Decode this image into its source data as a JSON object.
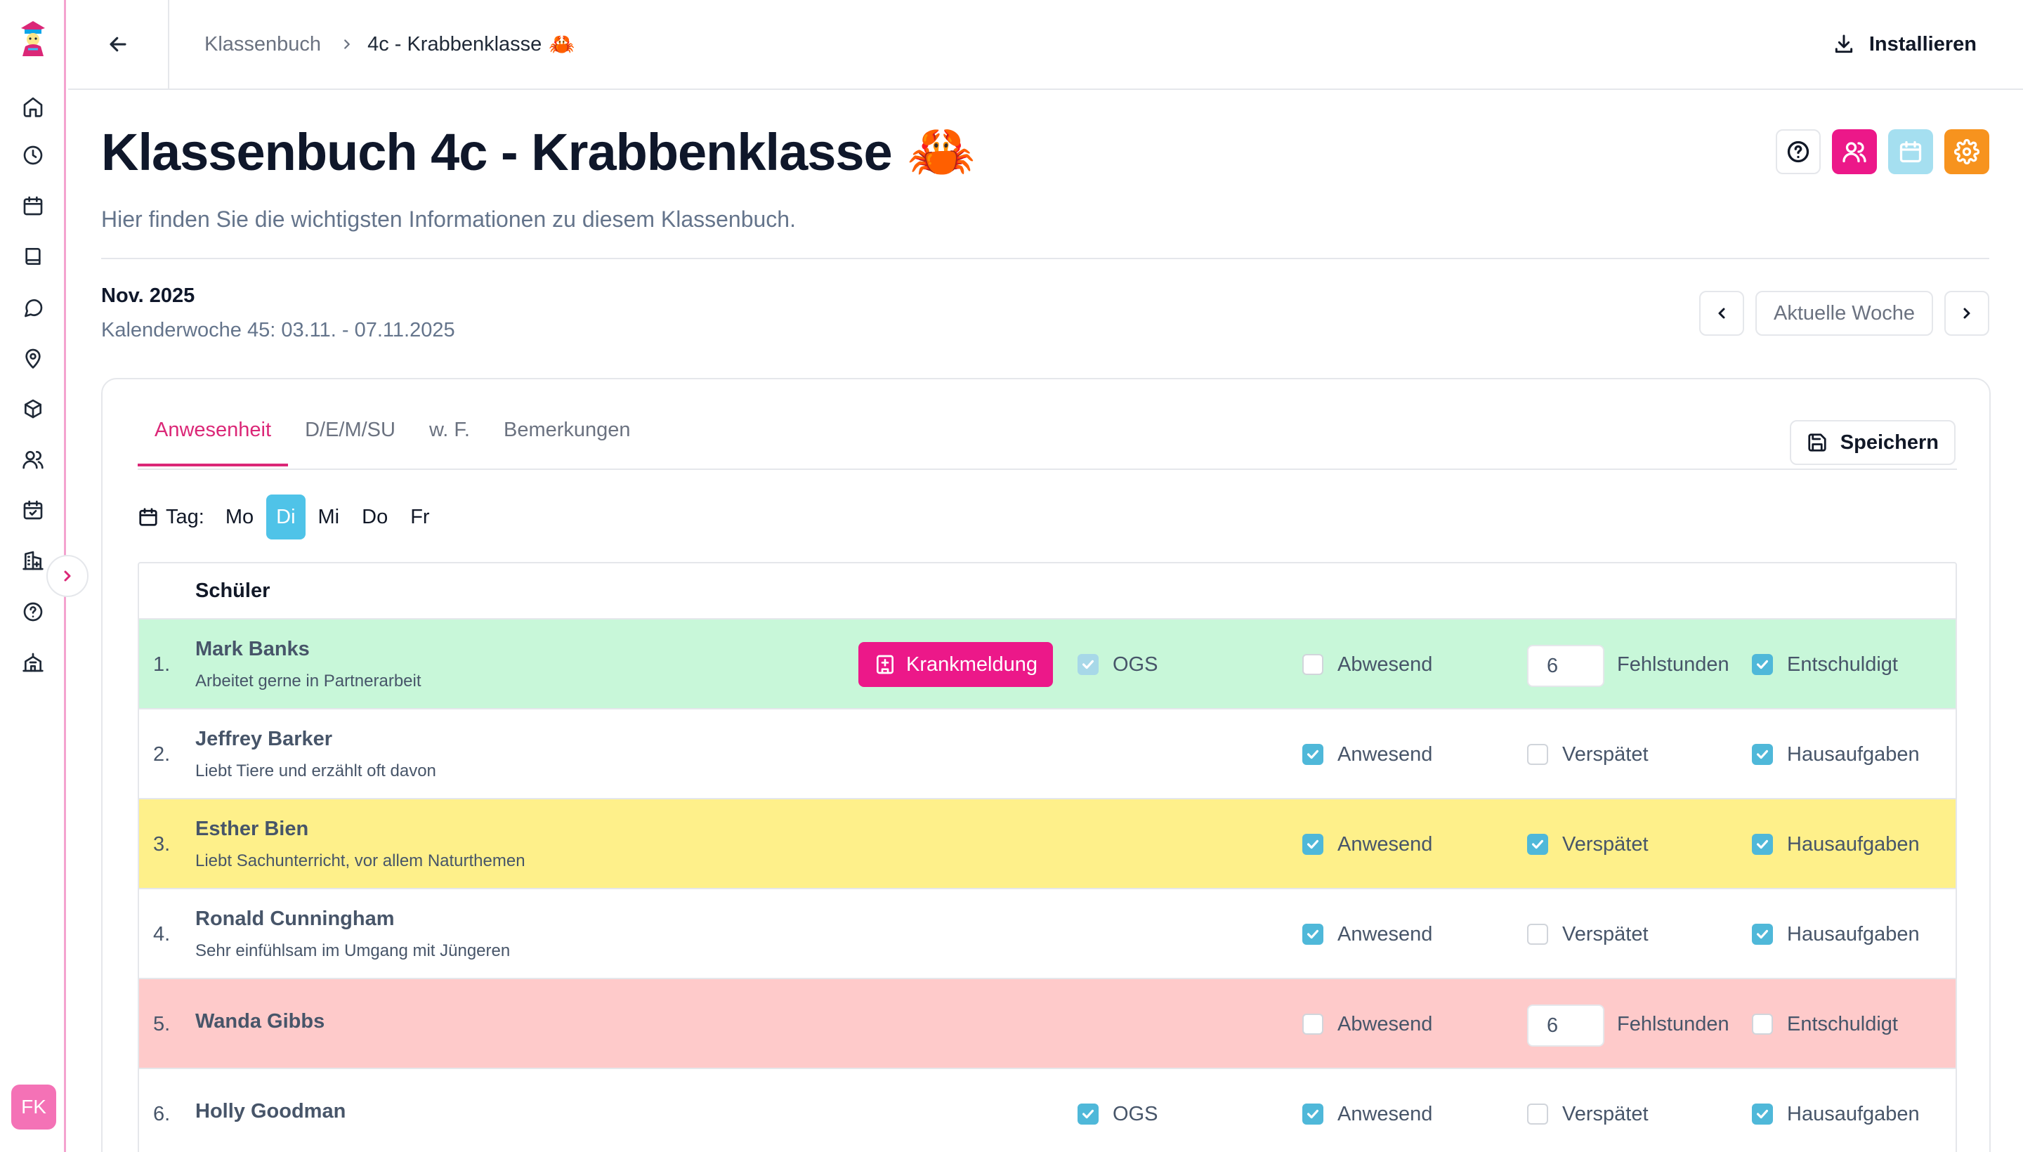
{
  "nav": {
    "breadcrumb_root": "Klassenbuch",
    "breadcrumb_current": "4c - Krabbenklasse",
    "breadcrumb_emoji": "🦀",
    "install_label": "Installieren"
  },
  "sidebar": {
    "items": [
      "home-icon",
      "clock-icon",
      "calendar-icon",
      "book-icon",
      "chat-icon",
      "map-pin-icon",
      "box-icon",
      "users-icon",
      "calendar-check-icon",
      "building-plus-icon",
      "help-icon",
      "school-icon"
    ],
    "avatar_initials": "FK"
  },
  "header": {
    "title": "Klassenbuch 4c - Krabbenklasse",
    "title_emoji": "🦀",
    "subtitle": "Hier finden Sie die wichtigsten Informationen zu diesem Klassenbuch.",
    "actions": [
      "help-icon",
      "users-icon",
      "calendar-icon",
      "settings-icon"
    ]
  },
  "week": {
    "month": "Nov. 2025",
    "range": "Kalenderwoche 45: 03.11. - 07.11.2025",
    "current_label": "Aktuelle Woche"
  },
  "tabs": [
    "Anwesenheit",
    "D/E/M/SU",
    "w. F.",
    "Bemerkungen"
  ],
  "active_tab": "Anwesenheit",
  "save_label": "Speichern",
  "days": {
    "label": "Tag:",
    "items": [
      "Mo",
      "Di",
      "Mi",
      "Do",
      "Fr"
    ],
    "active": "Di"
  },
  "table": {
    "header": "Schüler",
    "rows": [
      {
        "num": "1.",
        "name": "Mark Banks",
        "note": "Arbeitet gerne in Partnerarbeit",
        "badge": "Krankmeldung",
        "ogs": "OGS",
        "a": "Abwesend",
        "hours": "6",
        "hours_label": "Fehlstunden",
        "c": "Entschuldigt"
      },
      {
        "num": "2.",
        "name": "Jeffrey Barker",
        "note": "Liebt Tiere und erzählt oft davon",
        "a": "Anwesend",
        "b": "Verspätet",
        "c": "Hausaufgaben"
      },
      {
        "num": "3.",
        "name": "Esther Bien",
        "note": "Liebt Sachunterricht, vor allem Naturthemen",
        "a": "Anwesend",
        "b": "Verspätet",
        "c": "Hausaufgaben"
      },
      {
        "num": "4.",
        "name": "Ronald Cunningham",
        "note": "Sehr einfühlsam im Umgang mit Jüngeren",
        "a": "Anwesend",
        "b": "Verspätet",
        "c": "Hausaufgaben"
      },
      {
        "num": "5.",
        "name": "Wanda Gibbs",
        "a": "Abwesend",
        "hours": "6",
        "hours_label": "Fehlstunden",
        "c": "Entschuldigt"
      },
      {
        "num": "6.",
        "name": "Holly Goodman",
        "ogs": "OGS",
        "a": "Anwesend",
        "b": "Verspätet",
        "c": "Hausaufgaben"
      }
    ]
  }
}
